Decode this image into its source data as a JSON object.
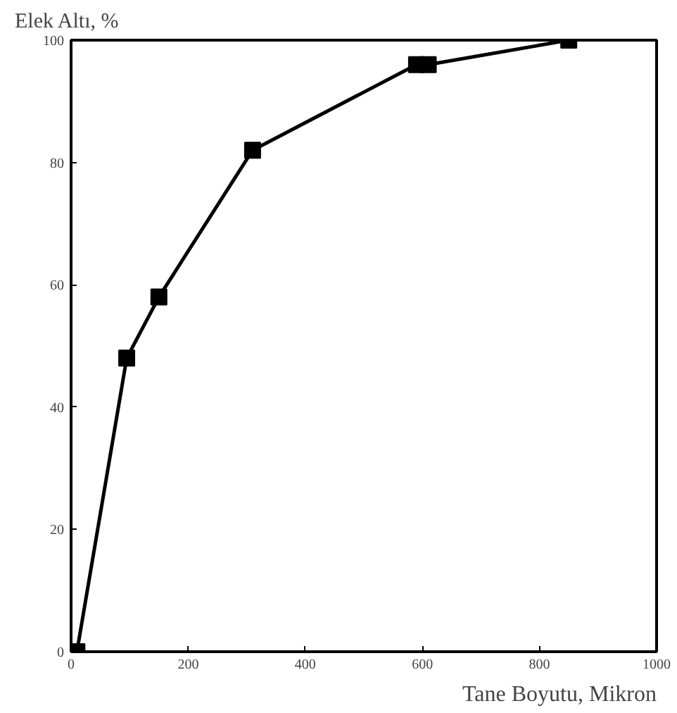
{
  "chart_data": {
    "type": "line",
    "xlabel": "Tane Boyutu, Mikron",
    "ylabel": "Elek Altı, %",
    "x": [
      0,
      10,
      95,
      150,
      310,
      590,
      610,
      850
    ],
    "series": [
      {
        "color": "#000000",
        "values": [
          0,
          0,
          48,
          58,
          82,
          96,
          96,
          100
        ]
      }
    ],
    "xlim": [
      0,
      1000
    ],
    "ylim": [
      0,
      100
    ],
    "xticks": [
      0,
      200,
      400,
      600,
      800,
      1000
    ],
    "yticks": [
      0,
      20,
      40,
      60,
      80,
      100
    ],
    "grid": false,
    "marker": "square",
    "line_style": "solid"
  }
}
